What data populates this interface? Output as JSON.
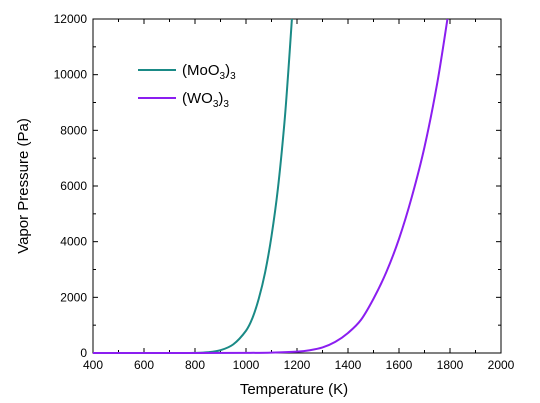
{
  "chart_data": {
    "type": "line",
    "xlabel": "Temperature (K)",
    "ylabel": "Vapor Pressure  (Pa)",
    "xlim": [
      400,
      2000
    ],
    "ylim": [
      0,
      12000
    ],
    "xticks": [
      "400",
      "600",
      "800",
      "1000",
      "1200",
      "1400",
      "1600",
      "1800",
      "2000"
    ],
    "yticks": [
      "0",
      "2000",
      "4000",
      "6000",
      "8000",
      "10000",
      "12000"
    ],
    "grid": false,
    "legend_position": "top-left",
    "series": [
      {
        "name": "(MoO3)3",
        "label_main": "(MoO",
        "label_sub1": "3",
        "label_close": ")",
        "label_sub2": "3",
        "color": "#1a8a86",
        "x": [
          400,
          600,
          700,
          800,
          850,
          900,
          950,
          1000,
          1025,
          1050,
          1075,
          1100,
          1125,
          1150,
          1165,
          1180
        ],
        "y": [
          0,
          0,
          0,
          5,
          25,
          100,
          310,
          800,
          1250,
          1950,
          2900,
          4200,
          5900,
          8200,
          10000,
          12000
        ]
      },
      {
        "name": "(WO3)3",
        "label_main": "(WO",
        "label_sub1": "3",
        "label_close": ")",
        "label_sub2": "3",
        "color": "#8b1ef0",
        "x": [
          400,
          800,
          1000,
          1100,
          1200,
          1250,
          1300,
          1350,
          1400,
          1450,
          1500,
          1550,
          1600,
          1650,
          1700,
          1750,
          1790
        ],
        "y": [
          0,
          0,
          5,
          15,
          50,
          100,
          200,
          400,
          720,
          1180,
          1950,
          2900,
          4100,
          5600,
          7400,
          9700,
          12000
        ]
      }
    ]
  }
}
